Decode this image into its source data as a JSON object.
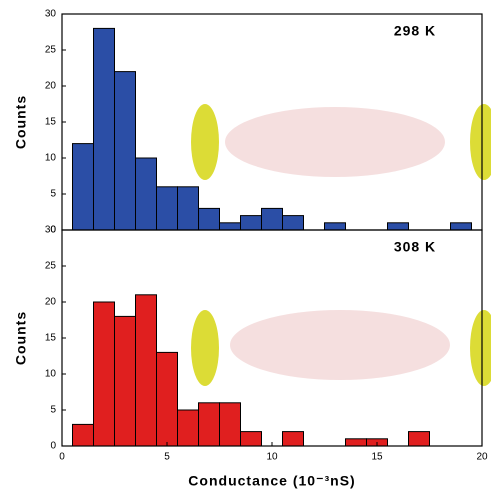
{
  "chart_data": [
    {
      "type": "histogram",
      "annotation": "298 K",
      "ylabel": "Counts",
      "color": "#2b4ea6",
      "bins": [
        0.5,
        1.5,
        2.5,
        3.5,
        4.5,
        5.5,
        6.5,
        7.5,
        8.5,
        9.5,
        10.5,
        11.5,
        12.5,
        13.5,
        14.5,
        15.5,
        16.5,
        17.5,
        18.5,
        19.5
      ],
      "values": [
        12,
        28,
        22,
        10,
        6,
        6,
        3,
        1,
        2,
        3,
        2,
        0,
        1,
        0,
        0,
        1,
        0,
        0,
        1
      ],
      "xlim": [
        0,
        20
      ],
      "ylim": [
        0,
        30
      ],
      "yticks": [
        0,
        5,
        10,
        15,
        20,
        25,
        30
      ]
    },
    {
      "type": "histogram",
      "annotation": "308 K",
      "ylabel": "Counts",
      "xlabel": "Conductance (10⁻³nS)",
      "color": "#e01f1f",
      "bins": [
        0.5,
        1.5,
        2.5,
        3.5,
        4.5,
        5.5,
        6.5,
        7.5,
        8.5,
        9.5,
        10.5,
        11.5,
        12.5,
        13.5,
        14.5,
        15.5,
        16.5,
        17.5,
        18.5,
        19.5
      ],
      "values": [
        3,
        20,
        18,
        21,
        13,
        5,
        6,
        6,
        2,
        0,
        2,
        0,
        0,
        1,
        1,
        0,
        2,
        0,
        0
      ],
      "xlim": [
        0,
        20
      ],
      "ylim": [
        0,
        30
      ],
      "yticks": [
        0,
        5,
        10,
        15,
        20,
        25,
        30
      ],
      "xticks": [
        0,
        5,
        10,
        15,
        20
      ]
    }
  ]
}
